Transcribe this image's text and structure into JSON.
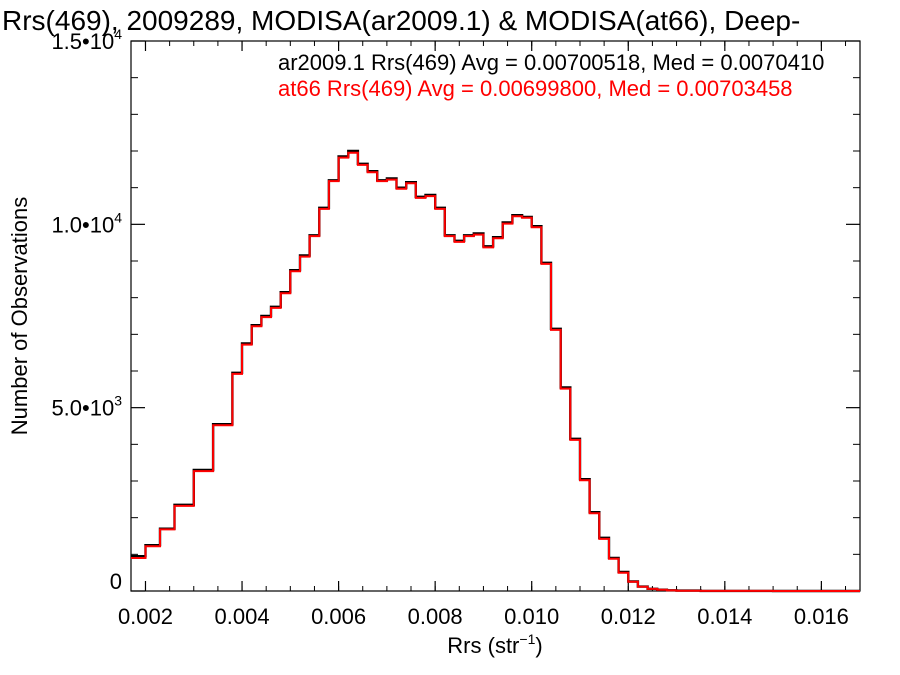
{
  "chart_data": {
    "type": "line",
    "title": "Rrs(469), 2009289, MODISA(ar2009.1) & MODISA(at66), Deep-",
    "xlabel": "Rrs (str",
    "xlabel_sup": "−1",
    "xlabel_close": ")",
    "ylabel": "Number of Observations",
    "xlim": [
      0.0017,
      0.0168
    ],
    "ylim": [
      0,
      15000
    ],
    "x_ticks": [
      {
        "value": 0.002,
        "label": "0.002"
      },
      {
        "value": 0.004,
        "label": "0.004"
      },
      {
        "value": 0.006,
        "label": "0.006"
      },
      {
        "value": 0.008,
        "label": "0.008"
      },
      {
        "value": 0.01,
        "label": "0.010"
      },
      {
        "value": 0.012,
        "label": "0.012"
      },
      {
        "value": 0.014,
        "label": "0.014"
      },
      {
        "value": 0.016,
        "label": "0.016"
      }
    ],
    "y_ticks": [
      {
        "value": 0,
        "label": "0",
        "exp": ""
      },
      {
        "value": 5000,
        "label": "5.0•10",
        "exp": "3"
      },
      {
        "value": 10000,
        "label": "1.0•10",
        "exp": "4"
      },
      {
        "value": 15000,
        "label": "1.5•10",
        "exp": "4"
      }
    ],
    "legend": [
      {
        "text": "ar2009.1 Rrs(469) Avg = 0.00700518, Med = 0.0070410",
        "color": "#000000"
      },
      {
        "text": "at66 Rrs(469) Avg = 0.00699800, Med = 0.00703458",
        "color": "#ff0000"
      }
    ],
    "series": [
      {
        "color": "#000000",
        "x": [
          0.0017,
          0.002,
          0.0023,
          0.0026,
          0.003,
          0.0034,
          0.0038,
          0.004,
          0.0042,
          0.0044,
          0.0046,
          0.0048,
          0.005,
          0.0052,
          0.0054,
          0.0056,
          0.0058,
          0.006,
          0.0062,
          0.0064,
          0.0066,
          0.0068,
          0.007,
          0.0072,
          0.0074,
          0.0076,
          0.0078,
          0.008,
          0.0082,
          0.0084,
          0.0086,
          0.0088,
          0.009,
          0.0092,
          0.0094,
          0.0096,
          0.0098,
          0.01,
          0.0102,
          0.0104,
          0.0106,
          0.0108,
          0.011,
          0.0112,
          0.0114,
          0.0116,
          0.0118,
          0.012,
          0.0122,
          0.0124,
          0.0126,
          0.0128,
          0.013,
          0.0135,
          0.014,
          0.015,
          0.0168
        ],
        "y": [
          950,
          1250,
          1700,
          2350,
          3300,
          4550,
          5950,
          6750,
          7250,
          7500,
          7750,
          8150,
          8750,
          9150,
          9700,
          10450,
          11200,
          11850,
          12000,
          11650,
          11450,
          11200,
          11250,
          11000,
          11150,
          10750,
          10800,
          10450,
          9700,
          9550,
          9700,
          9750,
          9400,
          9650,
          10050,
          10250,
          10200,
          9950,
          8950,
          7150,
          5550,
          4150,
          3050,
          2150,
          1450,
          900,
          520,
          260,
          120,
          60,
          35,
          18,
          10,
          4,
          2,
          0,
          0
        ]
      },
      {
        "color": "#ff0000",
        "x": [
          0.0017,
          0.002,
          0.0023,
          0.0026,
          0.003,
          0.0034,
          0.0038,
          0.004,
          0.0042,
          0.0044,
          0.0046,
          0.0048,
          0.005,
          0.0052,
          0.0054,
          0.0056,
          0.0058,
          0.006,
          0.0062,
          0.0064,
          0.0066,
          0.0068,
          0.007,
          0.0072,
          0.0074,
          0.0076,
          0.0078,
          0.008,
          0.0082,
          0.0084,
          0.0086,
          0.0088,
          0.009,
          0.0092,
          0.0094,
          0.0096,
          0.0098,
          0.01,
          0.0102,
          0.0104,
          0.0106,
          0.0108,
          0.011,
          0.0112,
          0.0114,
          0.0116,
          0.0118,
          0.012,
          0.0122,
          0.0124,
          0.0126,
          0.0128,
          0.013,
          0.0135,
          0.014,
          0.015,
          0.0168
        ],
        "y": [
          900,
          1220,
          1680,
          2320,
          3270,
          4520,
          5920,
          6720,
          7220,
          7470,
          7720,
          8120,
          8720,
          9120,
          9680,
          10420,
          11180,
          11820,
          11950,
          11620,
          11420,
          11180,
          11220,
          10970,
          11120,
          10720,
          10770,
          10420,
          9680,
          9520,
          9680,
          9720,
          9370,
          9620,
          10020,
          10220,
          10180,
          9920,
          8920,
          7120,
          5520,
          4120,
          3020,
          2120,
          1420,
          880,
          500,
          250,
          115,
          58,
          33,
          17,
          9,
          4,
          2,
          0,
          0
        ]
      }
    ]
  }
}
